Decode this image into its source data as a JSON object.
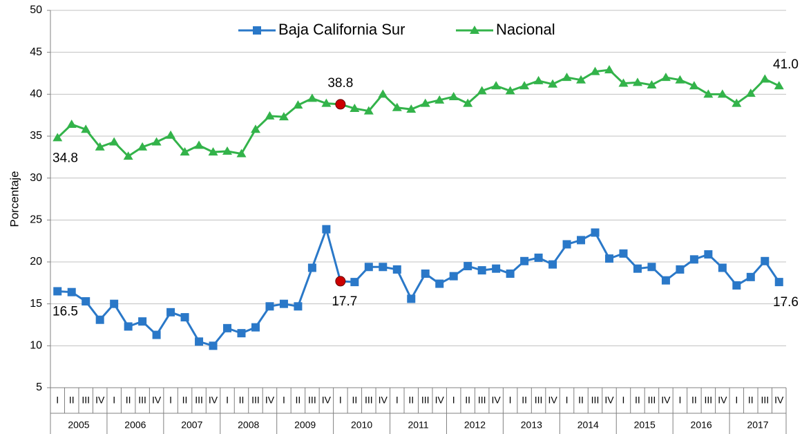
{
  "chart_data": {
    "type": "line",
    "y_label": "Porcentaje",
    "categories": [
      "I",
      "II",
      "III",
      "IV",
      "I",
      "II",
      "III",
      "IV",
      "I",
      "II",
      "III",
      "IV",
      "I",
      "II",
      "III",
      "IV",
      "I",
      "II",
      "III",
      "IV",
      "I",
      "II",
      "III",
      "IV",
      "I",
      "II",
      "III",
      "IV",
      "I",
      "II",
      "III",
      "IV",
      "I",
      "II",
      "III",
      "IV",
      "I",
      "II",
      "III",
      "IV",
      "I",
      "II",
      "III",
      "IV",
      "I",
      "II",
      "III",
      "IV",
      "I",
      "II",
      "III",
      "IV"
    ],
    "groups": [
      "2005",
      "2006",
      "2007",
      "2008",
      "2009",
      "2010",
      "2011",
      "2012",
      "2013",
      "2014",
      "2015",
      "2016",
      "2017"
    ],
    "ylim": [
      5,
      50
    ],
    "yticks": [
      5,
      10,
      15,
      20,
      25,
      30,
      35,
      40,
      45,
      50
    ],
    "grid": true,
    "legend": "top",
    "highlight": {
      "index": 20,
      "color": "#cc0000"
    },
    "series": [
      {
        "name": "Baja California Sur",
        "color": "#2a78c8",
        "marker": "square",
        "values": [
          16.5,
          16.4,
          15.3,
          13.1,
          15.0,
          12.3,
          12.9,
          11.3,
          14.0,
          13.4,
          10.5,
          10.0,
          12.1,
          11.5,
          12.2,
          14.7,
          15.0,
          14.7,
          19.3,
          23.9,
          17.7,
          17.6,
          19.4,
          19.4,
          19.1,
          15.6,
          18.6,
          17.4,
          18.3,
          19.5,
          19.0,
          19.2,
          18.6,
          20.1,
          20.5,
          19.7,
          22.1,
          22.6,
          23.5,
          20.4,
          21.0,
          19.2,
          19.4,
          17.8,
          19.1,
          20.3,
          20.9,
          19.3,
          17.2,
          18.2,
          20.1,
          17.6
        ],
        "value_labels": [
          "16.5",
          null,
          null,
          null,
          null,
          null,
          null,
          null,
          null,
          null,
          null,
          null,
          null,
          null,
          null,
          null,
          null,
          null,
          null,
          null,
          "17.7",
          null,
          null,
          null,
          null,
          null,
          null,
          null,
          null,
          null,
          null,
          null,
          null,
          null,
          null,
          null,
          null,
          null,
          null,
          null,
          null,
          null,
          null,
          null,
          null,
          null,
          null,
          null,
          null,
          null,
          null,
          "17.6"
        ]
      },
      {
        "name": "Nacional",
        "color": "#33b34a",
        "marker": "triangle",
        "values": [
          34.8,
          36.4,
          35.8,
          33.7,
          34.3,
          32.6,
          33.7,
          34.3,
          35.1,
          33.1,
          33.9,
          33.1,
          33.2,
          32.9,
          35.8,
          37.4,
          37.3,
          38.7,
          39.5,
          38.9,
          38.8,
          38.3,
          38.0,
          40.0,
          38.4,
          38.2,
          38.9,
          39.3,
          39.7,
          38.9,
          40.4,
          41.0,
          40.4,
          41.0,
          41.6,
          41.2,
          42.0,
          41.7,
          42.7,
          42.9,
          41.3,
          41.4,
          41.1,
          42.0,
          41.7,
          41.0,
          40.0,
          40.0,
          38.9,
          40.1,
          41.8,
          41.0
        ],
        "value_labels": [
          "34.8",
          null,
          null,
          null,
          null,
          null,
          null,
          null,
          null,
          null,
          null,
          null,
          null,
          null,
          null,
          null,
          null,
          null,
          null,
          null,
          "38.8",
          null,
          null,
          null,
          null,
          null,
          null,
          null,
          null,
          null,
          null,
          null,
          null,
          null,
          null,
          null,
          null,
          null,
          null,
          null,
          null,
          null,
          null,
          null,
          null,
          null,
          null,
          null,
          null,
          null,
          null,
          "41.0"
        ]
      }
    ]
  }
}
